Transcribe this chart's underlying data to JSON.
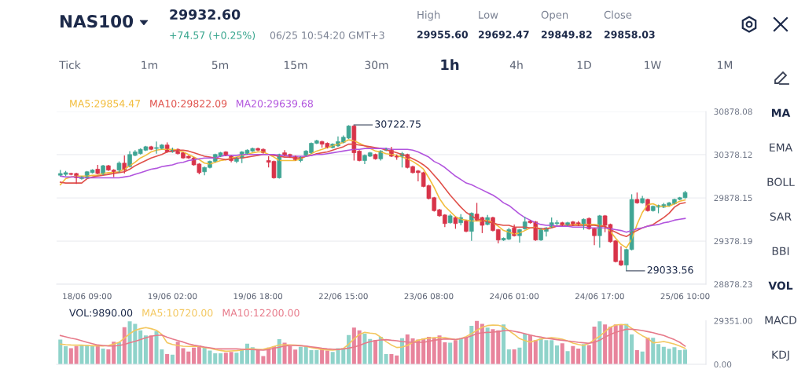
{
  "chart_data": [
    {
      "type": "other",
      "title": "NAS100",
      "annotations": [
        "29932.60",
        "+74.57 (+0.25%)",
        "06/25 10:54:20 GMT+3",
        "High",
        "29955.60",
        "Low",
        "29692.47",
        "Open",
        "29849.82",
        "Close",
        "29858.03",
        "Tick",
        "1m",
        "5m",
        "15m",
        "30m",
        "1h",
        "4h",
        "1D",
        "1W",
        "1M",
        "MA",
        "EMA",
        "BOLL",
        "SAR",
        "BBI",
        "VOL",
        "MACD",
        "KDJ"
      ]
    },
    {
      "type": "candlestick",
      "categories": [
        null,
        null,
        null,
        null,
        null,
        "18/06 09:00",
        null,
        null,
        null,
        null,
        null,
        null,
        null,
        null,
        null,
        null,
        null,
        null,
        null,
        null,
        null,
        "19/06 02:00",
        null,
        null,
        null,
        null,
        null,
        null,
        null,
        null,
        null,
        null,
        null,
        null,
        null,
        null,
        null,
        "19/06 18:00",
        null,
        null,
        null,
        null,
        null,
        null,
        null,
        null,
        null,
        null,
        null,
        null,
        null,
        null,
        null,
        "22/06 15:00",
        null,
        null,
        null,
        null,
        null,
        null,
        null,
        null,
        null,
        null,
        null,
        null,
        null,
        null,
        null,
        "23/06 08:00",
        null,
        null,
        null,
        null,
        null,
        null,
        null,
        null,
        null,
        null,
        null,
        null,
        null,
        null,
        null,
        "24/06 01:00",
        null,
        null,
        null,
        null,
        null,
        null,
        null,
        null,
        null,
        null,
        null,
        null,
        null,
        null,
        null,
        "24/06 17:00",
        null,
        null,
        null,
        null,
        null,
        null,
        null,
        null,
        null,
        null,
        null,
        null,
        null,
        null,
        null,
        "25/06 10:00"
      ],
      "ohlc": [
        [
          30140,
          30200,
          30130,
          30160
        ],
        [
          30150,
          30190,
          30130,
          30170
        ],
        [
          30160,
          30170,
          30140,
          30150
        ],
        [
          30160,
          30170,
          30040,
          30110
        ],
        [
          30100,
          30130,
          30090,
          30120
        ],
        [
          30110,
          30190,
          30100,
          30180
        ],
        [
          30170,
          30210,
          30160,
          30200
        ],
        [
          30210,
          30260,
          30150,
          30160
        ],
        [
          30150,
          30260,
          30140,
          30250
        ],
        [
          30250,
          30260,
          30190,
          30200
        ],
        [
          30200,
          30210,
          30120,
          30180
        ],
        [
          30200,
          30300,
          30170,
          30280
        ],
        [
          30280,
          30370,
          30160,
          30200
        ],
        [
          30240,
          30420,
          30230,
          30380
        ],
        [
          30370,
          30430,
          30360,
          30410
        ],
        [
          30390,
          30450,
          30380,
          30440
        ],
        [
          30430,
          30480,
          30420,
          30470
        ],
        [
          30470,
          30480,
          30430,
          30440
        ],
        [
          30450,
          30530,
          30390,
          30460
        ],
        [
          30450,
          30500,
          30440,
          30490
        ],
        [
          30490,
          30520,
          30400,
          30410
        ],
        [
          30410,
          30460,
          30400,
          30440
        ],
        [
          30440,
          30450,
          30380,
          30390
        ],
        [
          30400,
          30410,
          30330,
          30340
        ],
        [
          30360,
          30370,
          30330,
          30340
        ],
        [
          30340,
          30350,
          30250,
          30260
        ],
        [
          30270,
          30280,
          30150,
          30170
        ],
        [
          30180,
          30240,
          30140,
          30230
        ],
        [
          30230,
          30310,
          30220,
          30300
        ],
        [
          30300,
          30390,
          30290,
          30380
        ],
        [
          30360,
          30410,
          30350,
          30400
        ],
        [
          30410,
          30420,
          30360,
          30370
        ],
        [
          30360,
          30370,
          30290,
          30310
        ],
        [
          30300,
          30350,
          30280,
          30340
        ],
        [
          30340,
          30420,
          30280,
          30410
        ],
        [
          30390,
          30440,
          30380,
          30430
        ],
        [
          30420,
          30460,
          30410,
          30450
        ],
        [
          30450,
          30460,
          30420,
          30430
        ],
        [
          30440,
          30450,
          30390,
          30400
        ],
        [
          30310,
          30360,
          30230,
          30290
        ],
        [
          30300,
          30310,
          30100,
          30110
        ],
        [
          30110,
          30390,
          30100,
          30380
        ],
        [
          30400,
          30430,
          30360,
          30370
        ],
        [
          30380,
          30390,
          30340,
          30350
        ],
        [
          30360,
          30370,
          30310,
          30320
        ],
        [
          30310,
          30360,
          30290,
          30350
        ],
        [
          30370,
          30430,
          30360,
          30420
        ],
        [
          30400,
          30520,
          30390,
          30510
        ],
        [
          30510,
          30550,
          30500,
          30540
        ],
        [
          30530,
          30540,
          30460,
          30500
        ],
        [
          30510,
          30520,
          30450,
          30460
        ],
        [
          30460,
          30510,
          30450,
          30500
        ],
        [
          30480,
          30590,
          30470,
          30530
        ],
        [
          30520,
          30600,
          30510,
          30580
        ],
        [
          30570,
          30720,
          30560,
          30710
        ],
        [
          30710,
          30722.75,
          30310,
          30400
        ],
        [
          30420,
          30430,
          30300,
          30310
        ],
        [
          30310,
          30380,
          30270,
          30370
        ],
        [
          30360,
          30410,
          30350,
          30400
        ],
        [
          30380,
          30390,
          30320,
          30330
        ],
        [
          30330,
          30430,
          30310,
          30420
        ],
        [
          30430,
          30460,
          30420,
          30440
        ],
        [
          30430,
          30470,
          30350,
          30360
        ],
        [
          30360,
          30380,
          30320,
          30350
        ],
        [
          30360,
          30410,
          30230,
          30390
        ],
        [
          30380,
          30390,
          30220,
          30230
        ],
        [
          30240,
          30250,
          30160,
          30170
        ],
        [
          30190,
          30200,
          30070,
          30170
        ],
        [
          30170,
          30180,
          30000,
          30010
        ],
        [
          30020,
          30030,
          29860,
          29870
        ],
        [
          29880,
          29890,
          29720,
          29730
        ],
        [
          29740,
          29750,
          29660,
          29670
        ],
        [
          29680,
          29690,
          29540,
          29580
        ],
        [
          29590,
          29690,
          29580,
          29670
        ],
        [
          29650,
          29660,
          29520,
          29580
        ],
        [
          29590,
          29690,
          29560,
          29650
        ],
        [
          29610,
          29620,
          29480,
          29490
        ],
        [
          29490,
          29710,
          29380,
          29700
        ],
        [
          29690,
          29820,
          29610,
          29620
        ],
        [
          29650,
          29660,
          29470,
          29560
        ],
        [
          29570,
          29680,
          29560,
          29650
        ],
        [
          29650,
          29660,
          29490,
          29500
        ],
        [
          29510,
          29520,
          29350,
          29390
        ],
        [
          29390,
          29420,
          29380,
          29410
        ],
        [
          29400,
          29530,
          29390,
          29510
        ],
        [
          29530,
          29570,
          29430,
          29440
        ],
        [
          29440,
          29520,
          29360,
          29510
        ],
        [
          29520,
          29660,
          29510,
          29600
        ],
        [
          29610,
          29620,
          29580,
          29590
        ],
        [
          29600,
          29610,
          29380,
          29390
        ],
        [
          29390,
          29530,
          29380,
          29520
        ],
        [
          29490,
          29540,
          29430,
          29530
        ],
        [
          29540,
          29650,
          29530,
          29590
        ],
        [
          29580,
          29620,
          29560,
          29590
        ],
        [
          29590,
          29600,
          29550,
          29560
        ],
        [
          29560,
          29600,
          29550,
          29590
        ],
        [
          29600,
          29610,
          29550,
          29560
        ],
        [
          29590,
          29610,
          29550,
          29560
        ],
        [
          29560,
          29640,
          29510,
          29630
        ],
        [
          29640,
          29650,
          29510,
          29520
        ],
        [
          29520,
          29530,
          29330,
          29440
        ],
        [
          29440,
          29680,
          29300,
          29670
        ],
        [
          29670,
          29680,
          29480,
          29560
        ],
        [
          29570,
          29580,
          29360,
          29370
        ],
        [
          29380,
          29390,
          29130,
          29140
        ],
        [
          29150,
          29320,
          29090,
          29100
        ],
        [
          29100,
          29290,
          29033.56,
          29280
        ],
        [
          29280,
          29920,
          29270,
          29860
        ],
        [
          29860,
          29940,
          29810,
          29820
        ],
        [
          29820,
          29900,
          29810,
          29870
        ],
        [
          29860,
          29870,
          29720,
          29730
        ],
        [
          29730,
          29790,
          29720,
          29780
        ],
        [
          29770,
          29800,
          29700,
          29790
        ],
        [
          29770,
          29820,
          29760,
          29800
        ],
        [
          29790,
          29830,
          29780,
          29820
        ],
        [
          29810,
          29870,
          29800,
          29860
        ],
        [
          29860,
          29890,
          29850,
          29880
        ],
        [
          29880,
          29960,
          29870,
          29940
        ]
      ],
      "colors": [
        "#40a594",
        "#40a594",
        "#d8344a",
        "#d8344a",
        "#40a594",
        "#40a594",
        "#40a594",
        "#d8344a",
        "#40a594",
        "#d8344a",
        "#d8344a",
        "#40a594",
        "#d8344a",
        "#40a594",
        "#40a594",
        "#40a594",
        "#40a594",
        "#d8344a",
        "#40a594",
        "#40a594",
        "#d8344a",
        "#40a594",
        "#d8344a",
        "#d8344a",
        "#d8344a",
        "#d8344a",
        "#d8344a",
        "#40a594",
        "#40a594",
        "#40a594",
        "#40a594",
        "#d8344a",
        "#d8344a",
        "#40a594",
        "#40a594",
        "#40a594",
        "#40a594",
        "#d8344a",
        "#d8344a",
        "#d8344a",
        "#d8344a",
        "#40a594",
        "#d8344a",
        "#d8344a",
        "#d8344a",
        "#40a594",
        "#40a594",
        "#40a594",
        "#40a594",
        "#d8344a",
        "#d8344a",
        "#40a594",
        "#40a594",
        "#40a594",
        "#40a594",
        "#d8344a",
        "#d8344a",
        "#40a594",
        "#40a594",
        "#d8344a",
        "#40a594",
        "#40a594",
        "#d8344a",
        "#d8344a",
        "#40a594",
        "#d8344a",
        "#d8344a",
        "#d8344a",
        "#d8344a",
        "#d8344a",
        "#d8344a",
        "#d8344a",
        "#d8344a",
        "#40a594",
        "#d8344a",
        "#40a594",
        "#d8344a",
        "#40a594",
        "#d8344a",
        "#d8344a",
        "#40a594",
        "#d8344a",
        "#d8344a",
        "#40a594",
        "#40a594",
        "#d8344a",
        "#40a594",
        "#40a594",
        "#d8344a",
        "#d8344a",
        "#40a594",
        "#40a594",
        "#40a594",
        "#40a594",
        "#d8344a",
        "#40a594",
        "#d8344a",
        "#d8344a",
        "#40a594",
        "#d8344a",
        "#d8344a",
        "#40a594",
        "#d8344a",
        "#d8344a",
        "#d8344a",
        "#d8344a",
        "#40a594",
        "#40a594",
        "#d8344a",
        "#40a594",
        "#d8344a",
        "#40a594",
        "#40a594",
        "#40a594",
        "#40a594",
        "#40a594",
        "#40a594",
        "#40a594"
      ],
      "series": [
        {
          "type": "line",
          "name": "MA5:29854.47",
          "color": "#f2bd3c",
          "values": [
            30030,
            30100,
            30120,
            30130,
            30130,
            30130,
            30140,
            30140,
            30160,
            30170,
            30170,
            30180,
            30210,
            30250,
            30290,
            30340,
            30370,
            30410,
            30430,
            30440,
            30440,
            30440,
            30430,
            30410,
            30380,
            30350,
            30320,
            30280,
            30270,
            30290,
            30310,
            30320,
            30340,
            30350,
            30370,
            30380,
            30400,
            30410,
            30410,
            30380,
            30350,
            30310,
            30310,
            30310,
            30310,
            30330,
            30360,
            30390,
            30420,
            30440,
            30460,
            30480,
            30500,
            30520,
            30550,
            30540,
            30510,
            30480,
            30450,
            30420,
            30410,
            30390,
            30380,
            30370,
            30350,
            30330,
            30300,
            30260,
            30210,
            30110,
            30000,
            29870,
            29780,
            29720,
            29660,
            29630,
            29620,
            29610,
            29610,
            29610,
            29620,
            29590,
            29550,
            29500,
            29480,
            29460,
            29470,
            29500,
            29530,
            29540,
            29510,
            29520,
            29540,
            29550,
            29560,
            29560,
            29570,
            29570,
            29570,
            29570,
            29570,
            29560,
            29550,
            29490,
            29410,
            29340,
            29300,
            29400,
            29570,
            29710,
            29800,
            29810,
            29780,
            29780,
            29780,
            29810,
            29840,
            29854.47
          ]
        },
        {
          "type": "line",
          "name": "MA10:29822.09",
          "color": "#e0504a",
          "values": [
            30060,
            30050,
            30050,
            30050,
            30050,
            30100,
            30120,
            30130,
            30140,
            30150,
            30160,
            30170,
            30180,
            30210,
            30250,
            30280,
            30310,
            30340,
            30360,
            30380,
            30410,
            30420,
            30430,
            30430,
            30420,
            30400,
            30380,
            30360,
            30350,
            30340,
            30330,
            30320,
            30330,
            30340,
            30340,
            30350,
            30360,
            30370,
            30380,
            30380,
            30370,
            30360,
            30350,
            30350,
            30340,
            30340,
            30360,
            30370,
            30390,
            30400,
            30410,
            30430,
            30450,
            30470,
            30500,
            30500,
            30490,
            30480,
            30470,
            30460,
            30450,
            30430,
            30420,
            30400,
            30380,
            30360,
            30330,
            30300,
            30260,
            30210,
            30140,
            30070,
            29990,
            29910,
            29840,
            29770,
            29710,
            29670,
            29630,
            29620,
            29600,
            29590,
            29570,
            29560,
            29560,
            29540,
            29540,
            29540,
            29530,
            29530,
            29520,
            29520,
            29530,
            29550,
            29550,
            29560,
            29560,
            29560,
            29560,
            29560,
            29560,
            29550,
            29550,
            29510,
            29480,
            29450,
            29430,
            29470,
            29500,
            29530,
            29550,
            29570,
            29610,
            29650,
            29700,
            29770,
            29810,
            29822.09
          ]
        },
        {
          "type": "line",
          "name": "MA20:29639.68",
          "color": "#b255de",
          "values": [
            30130,
            30120,
            30120,
            30120,
            30110,
            30110,
            30110,
            30110,
            30110,
            30110,
            30110,
            30110,
            30120,
            30130,
            30150,
            30170,
            30190,
            30210,
            30220,
            30240,
            30250,
            30260,
            30280,
            30290,
            30310,
            30320,
            30330,
            30340,
            30340,
            30340,
            30360,
            30370,
            30370,
            30370,
            30380,
            30380,
            30380,
            30380,
            30380,
            30380,
            30380,
            30370,
            30370,
            30360,
            30360,
            30360,
            30360,
            30370,
            30380,
            30380,
            30390,
            30400,
            30410,
            30420,
            30430,
            30440,
            30440,
            30450,
            30450,
            30450,
            30450,
            30450,
            30440,
            30440,
            30440,
            30440,
            30430,
            30410,
            30380,
            30350,
            30300,
            30270,
            30230,
            30180,
            30130,
            30090,
            30050,
            30030,
            30000,
            29970,
            29940,
            29910,
            29870,
            29820,
            29790,
            29740,
            29690,
            29650,
            29620,
            29590,
            29570,
            29560,
            29560,
            29550,
            29550,
            29550,
            29540,
            29540,
            29540,
            29530,
            29530,
            29530,
            29530,
            29520,
            29510,
            29500,
            29480,
            29500,
            29520,
            29530,
            29550,
            29560,
            29570,
            29590,
            29600,
            29620,
            29630,
            29639.68
          ]
        }
      ],
      "ylim": [
        28878.23,
        30878.08
      ],
      "yticks": [
        30878.08,
        30378.12,
        29878.15,
        29378.19,
        28878.23
      ],
      "grid": "y",
      "legend": "top left",
      "annotations": [
        "30722.75",
        "29033.56"
      ]
    },
    {
      "type": "bar",
      "title": "VOL:9890.00",
      "categories": [
        null,
        null,
        null,
        null,
        null,
        null,
        null,
        null,
        null,
        null,
        null,
        null,
        null,
        null,
        null,
        null,
        null,
        null,
        null,
        null,
        null,
        null,
        null,
        null,
        null,
        null,
        null,
        null,
        null,
        null,
        null,
        null,
        null,
        null,
        null,
        null,
        null,
        null,
        null,
        null,
        null,
        null,
        null,
        null,
        null,
        null,
        null,
        null,
        null,
        null,
        null,
        null,
        null,
        null,
        null,
        null,
        null,
        null,
        null,
        null,
        null,
        null,
        null,
        null,
        null,
        null,
        null,
        null,
        null,
        null,
        null,
        null,
        null,
        null,
        null,
        null,
        null,
        null,
        null,
        null,
        null,
        null,
        null,
        null,
        null,
        null,
        null,
        null,
        null,
        null,
        null,
        null,
        null,
        null,
        null,
        null,
        null,
        null,
        null,
        null,
        null,
        null,
        null,
        null,
        null,
        null,
        null,
        null,
        null,
        null,
        null,
        null,
        null,
        null,
        null,
        null,
        null,
        null
      ],
      "values": [
        16600,
        12200,
        10900,
        12300,
        12700,
        13000,
        12200,
        13000,
        10600,
        10000,
        15200,
        14800,
        25000,
        28900,
        27200,
        22900,
        19400,
        19400,
        22400,
        10000,
        6900,
        6500,
        15200,
        10900,
        8600,
        11300,
        12700,
        11300,
        9200,
        7400,
        7400,
        7800,
        8300,
        7800,
        10400,
        13900,
        11500,
        10000,
        5600,
        11300,
        12200,
        16900,
        14500,
        12200,
        9900,
        11800,
        12300,
        9500,
        9500,
        10900,
        9200,
        8300,
        10900,
        10900,
        19700,
        24700,
        22900,
        20600,
        17100,
        16200,
        18500,
        6900,
        6900,
        6000,
        17600,
        20100,
        17500,
        16600,
        17500,
        18500,
        18000,
        19400,
        14800,
        14500,
        16200,
        17600,
        18000,
        25900,
        29300,
        27300,
        24700,
        23600,
        22900,
        26800,
        10000,
        10000,
        11300,
        20600,
        19700,
        16200,
        17600,
        16200,
        16200,
        12700,
        14100,
        8800,
        12300,
        10600,
        13600,
        13000,
        25400,
        28900,
        26800,
        25400,
        26800,
        26800,
        27300,
        20100,
        9500,
        8600,
        18000,
        17800,
        13600,
        11800,
        10400,
        11500,
        9500,
        9890
      ],
      "colors": [
        "#8fd3ca",
        "#8fd3ca",
        "#e8849c",
        "#e8849c",
        "#8fd3ca",
        "#8fd3ca",
        "#8fd3ca",
        "#e8849c",
        "#8fd3ca",
        "#e8849c",
        "#e8849c",
        "#8fd3ca",
        "#e8849c",
        "#8fd3ca",
        "#8fd3ca",
        "#8fd3ca",
        "#8fd3ca",
        "#e8849c",
        "#8fd3ca",
        "#8fd3ca",
        "#e8849c",
        "#8fd3ca",
        "#e8849c",
        "#e8849c",
        "#e8849c",
        "#e8849c",
        "#e8849c",
        "#8fd3ca",
        "#8fd3ca",
        "#8fd3ca",
        "#8fd3ca",
        "#e8849c",
        "#e8849c",
        "#8fd3ca",
        "#8fd3ca",
        "#8fd3ca",
        "#8fd3ca",
        "#e8849c",
        "#e8849c",
        "#e8849c",
        "#e8849c",
        "#8fd3ca",
        "#e8849c",
        "#e8849c",
        "#e8849c",
        "#8fd3ca",
        "#8fd3ca",
        "#8fd3ca",
        "#8fd3ca",
        "#e8849c",
        "#e8849c",
        "#8fd3ca",
        "#8fd3ca",
        "#8fd3ca",
        "#8fd3ca",
        "#e8849c",
        "#e8849c",
        "#8fd3ca",
        "#8fd3ca",
        "#e8849c",
        "#8fd3ca",
        "#8fd3ca",
        "#e8849c",
        "#e8849c",
        "#8fd3ca",
        "#e8849c",
        "#e8849c",
        "#e8849c",
        "#e8849c",
        "#e8849c",
        "#e8849c",
        "#e8849c",
        "#e8849c",
        "#8fd3ca",
        "#e8849c",
        "#8fd3ca",
        "#e8849c",
        "#8fd3ca",
        "#e8849c",
        "#e8849c",
        "#8fd3ca",
        "#e8849c",
        "#e8849c",
        "#8fd3ca",
        "#8fd3ca",
        "#e8849c",
        "#8fd3ca",
        "#8fd3ca",
        "#e8849c",
        "#e8849c",
        "#8fd3ca",
        "#8fd3ca",
        "#8fd3ca",
        "#8fd3ca",
        "#e8849c",
        "#8fd3ca",
        "#e8849c",
        "#e8849c",
        "#8fd3ca",
        "#e8849c",
        "#e8849c",
        "#8fd3ca",
        "#e8849c",
        "#e8849c",
        "#e8849c",
        "#e8849c",
        "#8fd3ca",
        "#8fd3ca",
        "#e8849c",
        "#8fd3ca",
        "#e8849c",
        "#8fd3ca",
        "#8fd3ca",
        "#8fd3ca",
        "#8fd3ca",
        "#8fd3ca",
        "#8fd3ca",
        "#8fd3ca"
      ],
      "series": [
        {
          "type": "line",
          "name": "MA5:10720.00",
          "color": "#f3c75e",
          "values": [
            13600,
            13200,
            13000,
            12900,
            12900,
            12700,
            12500,
            12500,
            12300,
            12700,
            13600,
            14800,
            17600,
            20600,
            22900,
            24000,
            24700,
            24000,
            22900,
            20100,
            14500,
            13400,
            12700,
            12200,
            12000,
            12200,
            12000,
            11300,
            10800,
            9900,
            9300,
            8800,
            9000,
            9200,
            9500,
            10400,
            10400,
            10000,
            10200,
            10900,
            12000,
            13000,
            13000,
            13000,
            12900,
            12700,
            12000,
            11300,
            10600,
            10000,
            9700,
            9500,
            10000,
            10600,
            13600,
            17100,
            20100,
            21500,
            21000,
            20600,
            18300,
            15300,
            13000,
            11300,
            11600,
            12700,
            14800,
            16200,
            17100,
            17600,
            18000,
            18000,
            18000,
            17300,
            16600,
            17300,
            18700,
            20600,
            22900,
            25000,
            26100,
            26400,
            26300,
            25400,
            22700,
            20100,
            17300,
            16000,
            15000,
            16000,
            17100,
            17600,
            18000,
            17600,
            16900,
            15700,
            14300,
            13400,
            12700,
            14100,
            16600,
            18900,
            22000,
            25000,
            26400,
            26800,
            26600,
            24200,
            21500,
            19200,
            17500,
            14500,
            14800,
            15300,
            14500,
            13600,
            12300,
            10720
          ]
        },
        {
          "type": "line",
          "name": "MA10:12200.00",
          "color": "#e77a8a",
          "values": [
            19400,
            18500,
            17600,
            16900,
            15900,
            14800,
            13900,
            13000,
            12700,
            12300,
            12300,
            12700,
            13400,
            14500,
            15500,
            16600,
            17800,
            18900,
            19400,
            19700,
            18300,
            17100,
            16000,
            15000,
            13800,
            12900,
            12300,
            11600,
            11100,
            10600,
            10400,
            10400,
            10400,
            10400,
            10200,
            10000,
            9900,
            9700,
            9500,
            9900,
            10800,
            11500,
            12300,
            12700,
            12700,
            12500,
            12300,
            11800,
            11300,
            10800,
            10400,
            10200,
            10000,
            10400,
            10900,
            11600,
            12700,
            14100,
            15200,
            16000,
            16400,
            16600,
            16200,
            15900,
            15300,
            15000,
            14800,
            14800,
            14800,
            15500,
            16200,
            16700,
            17100,
            16900,
            16700,
            17300,
            18000,
            19200,
            20600,
            21300,
            21500,
            21700,
            22000,
            22600,
            22900,
            22200,
            21500,
            20600,
            19700,
            18900,
            18300,
            17600,
            17100,
            16600,
            16200,
            15700,
            15300,
            14800,
            14500,
            14100,
            14800,
            16200,
            18300,
            20100,
            21500,
            22600,
            23600,
            23600,
            23300,
            22700,
            22000,
            21300,
            20300,
            19400,
            18000,
            16600,
            14800,
            12200
          ]
        }
      ],
      "ylim": [
        0,
        29351
      ],
      "yticks": [
        {
          "value": 29351,
          "label": "29351.00"
        },
        {
          "value": 0,
          "label": "0.00"
        }
      ],
      "tick_labels": "y",
      "legend": "top left"
    }
  ]
}
